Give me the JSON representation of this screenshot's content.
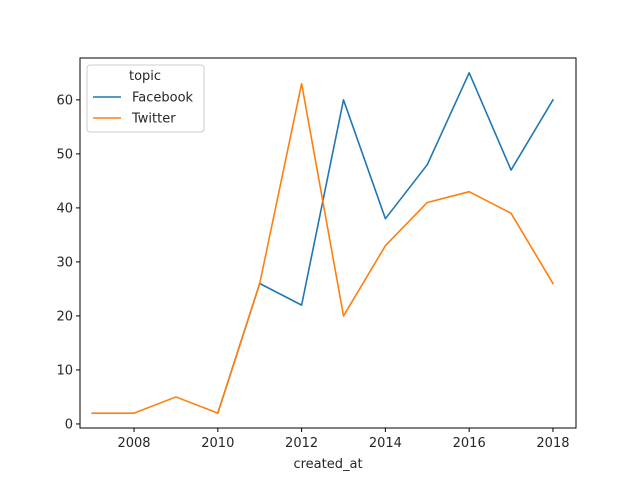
{
  "chart_data": {
    "type": "line",
    "title": "",
    "xlabel": "created_at",
    "ylabel": "",
    "xlim": [
      2006.71,
      2018.55
    ],
    "ylim": [
      -0.75,
      67.75
    ],
    "xticks": [
      2008,
      2010,
      2012,
      2014,
      2016,
      2018
    ],
    "yticks": [
      0,
      10,
      20,
      30,
      40,
      50,
      60
    ],
    "grid": false,
    "legend": {
      "title": "topic",
      "placement": "top-left"
    },
    "series": [
      {
        "name": "Facebook",
        "color": "#1f77b4",
        "x": [
          2010,
          2011,
          2012,
          2013,
          2014,
          2015,
          2016,
          2017,
          2018
        ],
        "y": [
          2,
          26,
          22,
          60,
          38,
          48,
          65,
          47,
          60
        ]
      },
      {
        "name": "Twitter",
        "color": "#ff7f0e",
        "x": [
          2007,
          2008,
          2009,
          2010,
          2011,
          2012,
          2013,
          2014,
          2015,
          2016,
          2017,
          2018
        ],
        "y": [
          2,
          2,
          5,
          2,
          26,
          63,
          20,
          33,
          41,
          43,
          39,
          26
        ]
      }
    ]
  }
}
